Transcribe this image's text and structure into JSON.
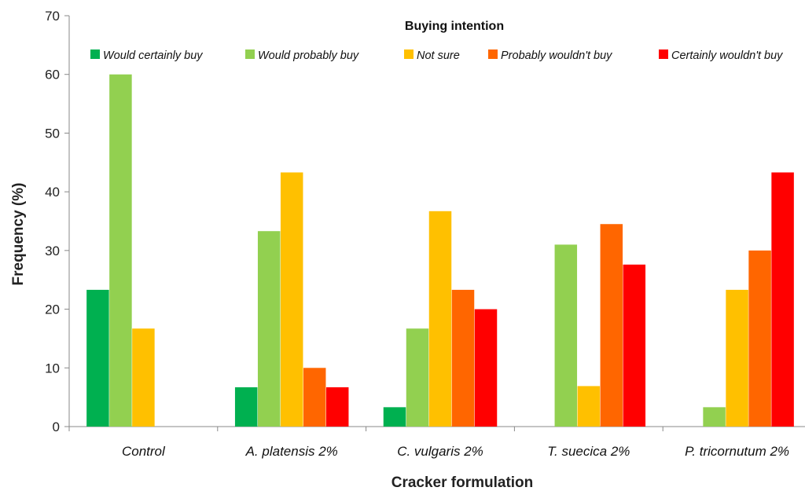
{
  "chart_data": {
    "type": "bar",
    "legend_title": "Buying intention",
    "xlabel": "Cracker formulation",
    "ylabel": "Frequency (%)",
    "ylim": [
      0,
      70
    ],
    "yticks": [
      0,
      10,
      20,
      30,
      40,
      50,
      60,
      70
    ],
    "grid": false,
    "legend_position": "top",
    "categories": [
      "Control",
      "A. platensis 2%",
      "C. vulgaris 2%",
      "T. suecica 2%",
      "P. tricornutum 2%"
    ],
    "series": [
      {
        "name": "Would certainly buy",
        "color": "#00b050",
        "values": [
          23.3,
          6.7,
          3.3,
          0,
          0
        ]
      },
      {
        "name": "Would probably buy",
        "color": "#92d050",
        "values": [
          60.0,
          33.3,
          16.7,
          31.0,
          3.3
        ]
      },
      {
        "name": "Not sure",
        "color": "#ffc000",
        "values": [
          16.7,
          43.3,
          36.7,
          6.9,
          23.3
        ]
      },
      {
        "name": "Probably wouldn't buy",
        "color": "#ff6600",
        "values": [
          0,
          10.0,
          23.3,
          34.5,
          30.0
        ]
      },
      {
        "name": "Certainly wouldn't buy",
        "color": "#ff0000",
        "values": [
          0,
          6.7,
          20.0,
          27.6,
          43.3
        ]
      }
    ]
  }
}
